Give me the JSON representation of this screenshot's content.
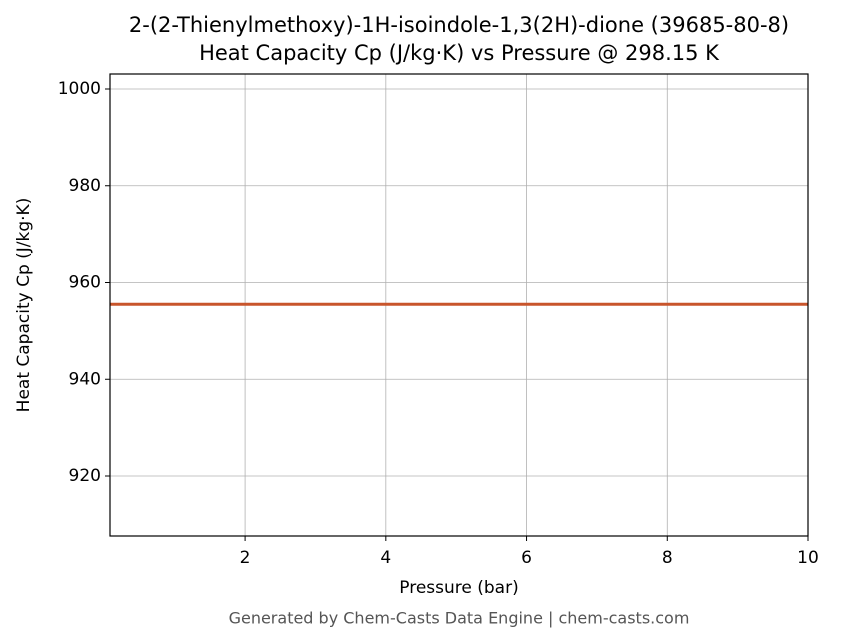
{
  "chart_data": {
    "type": "line",
    "title": "2-(2-Thienylmethoxy)-1H-isoindole-1,3(2H)-dione (39685-80-8)",
    "subtitle": "Heat Capacity Cp (J/kg·K) vs Pressure @ 298.15 K",
    "x_label": "Pressure (bar)",
    "y_label": "Heat Capacity Cp (J/kg·K)",
    "footer": "Generated by Chem-Casts Data Engine | chem-casts.com",
    "x": [
      0.08,
      10
    ],
    "series": [
      {
        "name": "Cp",
        "color": "#c8552b",
        "values": [
          955.5,
          955.5
        ]
      }
    ],
    "xlim": [
      0.08,
      10
    ],
    "xticks": [
      2,
      4,
      6,
      8,
      10
    ],
    "ylim": [
      907.6,
      1003.1
    ],
    "yticks": [
      920,
      940,
      960,
      980,
      1000
    ],
    "grid": true
  }
}
